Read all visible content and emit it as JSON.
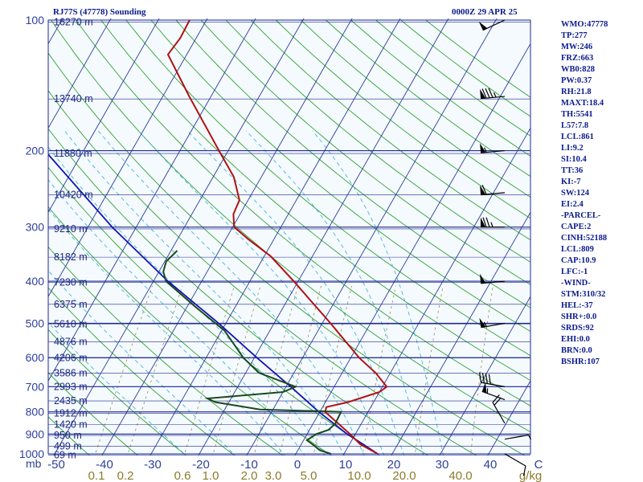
{
  "chart_data": {
    "type": "skew-t log-p sounding",
    "title": "RJ77S (47778) Sounding",
    "time": "0000Z 29 APR 25",
    "pressure_ticks": [
      "100",
      "200",
      "300",
      "400",
      "500",
      "600",
      "700",
      "800",
      "900",
      "1000"
    ],
    "pressure_unit": "mb",
    "temperature_ticks": [
      "-50",
      "-40",
      "-30",
      "-20",
      "-10",
      "0",
      "10",
      "20",
      "30",
      "40",
      "C"
    ],
    "mixing_ratio_ticks": [
      "0.1",
      "0.2",
      "0.6",
      "1.0",
      "2.0",
      "3.0",
      "5.0",
      "10.0",
      "20.0",
      "40.0",
      "g/kg"
    ],
    "height_labels": [
      {
        "p": 1006,
        "label": "69 m"
      },
      {
        "p": 960,
        "label": "499 m"
      },
      {
        "p": 907,
        "label": "950 m"
      },
      {
        "p": 855,
        "label": "1420 m"
      },
      {
        "p": 807,
        "label": "1912 m"
      },
      {
        "p": 755,
        "label": "2435 m"
      },
      {
        "p": 700,
        "label": "2993 m"
      },
      {
        "p": 651,
        "label": "3586 m"
      },
      {
        "p": 601,
        "label": "4206 m"
      },
      {
        "p": 552,
        "label": "4876 m"
      },
      {
        "p": 502,
        "label": "5610 m"
      },
      {
        "p": 452,
        "label": "6375 m"
      },
      {
        "p": 402,
        "label": "7230 m"
      },
      {
        "p": 352,
        "label": "8182 m"
      },
      {
        "p": 303,
        "label": "9210 m"
      },
      {
        "p": 253,
        "label": "10420 m"
      },
      {
        "p": 203,
        "label": "11880 m"
      },
      {
        "p": 152,
        "label": "13740 m"
      },
      {
        "p": 101,
        "label": "16270 m"
      }
    ],
    "temperature_profile": [
      {
        "p": 1000,
        "t": 17.0
      },
      {
        "p": 950,
        "t": 12.2
      },
      {
        "p": 900,
        "t": 8.9
      },
      {
        "p": 850,
        "t": 5.1
      },
      {
        "p": 800,
        "t": 1.1
      },
      {
        "p": 780,
        "t": 0.8
      },
      {
        "p": 760,
        "t": 4.7
      },
      {
        "p": 720,
        "t": 10.0
      },
      {
        "p": 700,
        "t": 10.9
      },
      {
        "p": 650,
        "t": 6.9
      },
      {
        "p": 600,
        "t": 1.7
      },
      {
        "p": 500,
        "t": -8.3
      },
      {
        "p": 400,
        "t": -20.9
      },
      {
        "p": 350,
        "t": -28.7
      },
      {
        "p": 320,
        "t": -35.3
      },
      {
        "p": 300,
        "t": -39.7
      },
      {
        "p": 280,
        "t": -41.4
      },
      {
        "p": 260,
        "t": -41.8
      },
      {
        "p": 230,
        "t": -45.7
      },
      {
        "p": 200,
        "t": -51.9
      },
      {
        "p": 150,
        "t": -64.5
      },
      {
        "p": 120,
        "t": -73.9
      },
      {
        "p": 110,
        "t": -73.3
      },
      {
        "p": 100,
        "t": -73.5
      }
    ],
    "dewpoint_profile": [
      {
        "p": 1000,
        "td": 7.3
      },
      {
        "p": 980,
        "td": 4.5
      },
      {
        "p": 950,
        "td": 2.3
      },
      {
        "p": 930,
        "td": 0.7
      },
      {
        "p": 900,
        "td": 1.9
      },
      {
        "p": 880,
        "td": 4.0
      },
      {
        "p": 850,
        "td": 4.6
      },
      {
        "p": 800,
        "td": 4.4
      },
      {
        "p": 790,
        "td": -12.7
      },
      {
        "p": 760,
        "td": -22.8
      },
      {
        "p": 745,
        "td": -24.9
      },
      {
        "p": 720,
        "td": -10.0
      },
      {
        "p": 700,
        "td": -8.0
      },
      {
        "p": 650,
        "td": -17.3
      },
      {
        "p": 600,
        "td": -22.3
      },
      {
        "p": 520,
        "td": -29.4
      },
      {
        "p": 460,
        "td": -38.0
      },
      {
        "p": 400,
        "td": -47.4
      },
      {
        "p": 380,
        "td": -49.1
      },
      {
        "p": 360,
        "td": -49.7
      },
      {
        "p": 340,
        "td": -48.7
      }
    ],
    "parcel_profile": [
      {
        "p": 1000,
        "t": 17.0
      },
      {
        "p": 950,
        "t": 12.8
      },
      {
        "p": 900,
        "t": 8.3
      },
      {
        "p": 800,
        "t": -0.2
      },
      {
        "p": 700,
        "t": -9.0
      },
      {
        "p": 600,
        "t": -19.5
      },
      {
        "p": 500,
        "t": -31.5
      },
      {
        "p": 400,
        "t": -47.0
      },
      {
        "p": 300,
        "t": -65.0
      },
      {
        "p": 200,
        "t": -88.0
      },
      {
        "p": 130,
        "t": -104.0
      }
    ],
    "winds": [
      {
        "p": 1000,
        "dir": 120,
        "spd": 10
      },
      {
        "p": 925,
        "dir": 80,
        "spd": 5
      },
      {
        "p": 850,
        "dir": 330,
        "spd": 20
      },
      {
        "p": 750,
        "dir": 290,
        "spd": 55
      },
      {
        "p": 700,
        "dir": 280,
        "spd": 40
      },
      {
        "p": 500,
        "dir": 260,
        "spd": 55
      },
      {
        "p": 400,
        "dir": 265,
        "spd": 50
      },
      {
        "p": 300,
        "dir": 270,
        "spd": 75
      },
      {
        "p": 250,
        "dir": 265,
        "spd": 60
      },
      {
        "p": 200,
        "dir": 265,
        "spd": 55
      },
      {
        "p": 150,
        "dir": 265,
        "spd": 85
      },
      {
        "p": 100,
        "dir": 245,
        "spd": 50
      }
    ],
    "colors": {
      "isobar": "#1f2a90",
      "isotherm": "#2b3a9a",
      "dry_adiabat": "#2fa32f",
      "moist_adiabat": "#45b6d8",
      "mixing_ratio": "#9a8f4a",
      "temperature": "#b01212",
      "dewpoint": "#1a4a1a",
      "parcel": "#1414b0",
      "wind": "#000000",
      "text": "#0a1a8c",
      "background": "#ffffff",
      "plot_background": "#f5faff"
    }
  },
  "indices": [
    "WMO:47778",
    "TP:277",
    "MW:246",
    "FRZ:663",
    "WB0:828",
    "PW:0.37",
    "RH:21.8",
    "MAXT:18.4",
    "TH:5541",
    "L57:7.8",
    "LCL:861",
    "LI:9.2",
    "SI:10.4",
    "TT:36",
    "KI:-7",
    "SW:124",
    "EI:2.4",
    "-PARCEL-",
    "CAPE:2",
    "CINH:52188",
    "LCL:809",
    "CAP:10.9",
    "LFC:-1",
    "-WIND-",
    "STM:310/32",
    "HEL:-37",
    "SHR+:0.0",
    "SRDS:92",
    "EHI:0.0",
    "BRN:0.0",
    "BSHR:107"
  ]
}
